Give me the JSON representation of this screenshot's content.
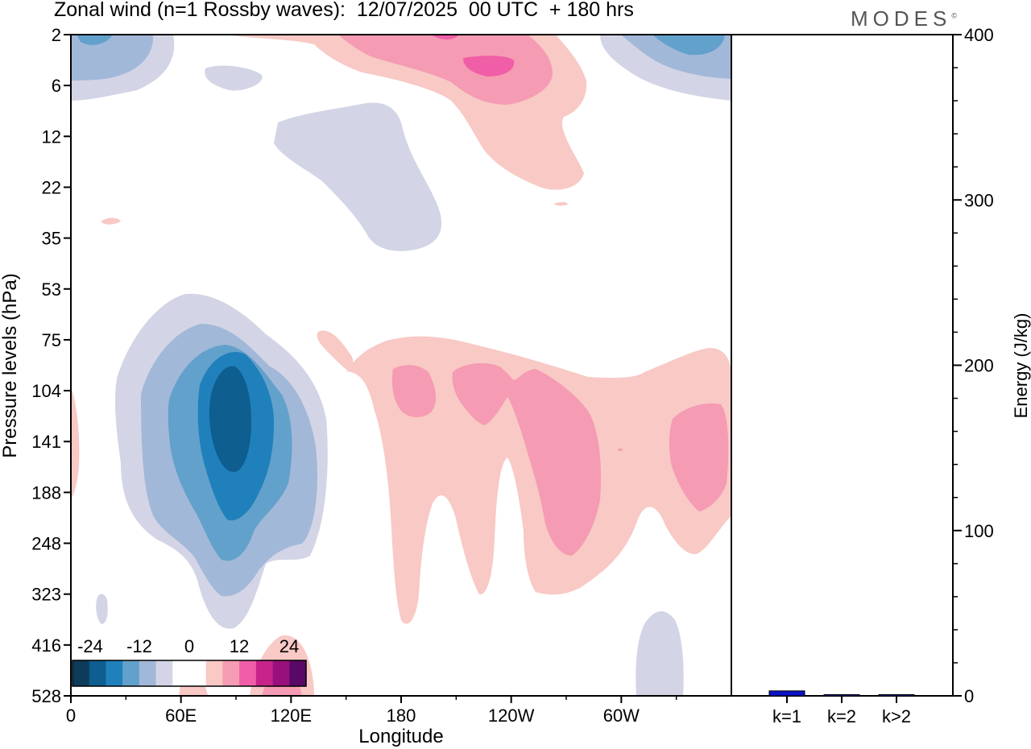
{
  "header": {
    "title": "Zonal wind (n=1 Rossby waves):  12/07/2025  00 UTC  + 180 hrs",
    "brand": "MODES",
    "brand_mark": "©"
  },
  "chart_data": [
    {
      "type": "heatmap",
      "title": "Zonal wind (n=1 Rossby waves):  12/07/2025  00 UTC  + 180 hrs",
      "xlabel": "Longitude",
      "ylabel": "Pressure levels (hPa)",
      "x_ticks": [
        "0",
        "60E",
        "120E",
        "180",
        "120W",
        "60W"
      ],
      "x_range_deg": [
        0,
        360
      ],
      "y_ticks": [
        "2",
        "6",
        "12",
        "22",
        "35",
        "53",
        "75",
        "104",
        "141",
        "188",
        "248",
        "323",
        "416",
        "528"
      ],
      "y_scale": "model levels (nonlinear)",
      "colorbar": {
        "labels": [
          "-24",
          "-12",
          "0",
          "12",
          "24"
        ],
        "levels": [
          -30,
          -24,
          -18,
          -12,
          -6,
          -3,
          3,
          6,
          12,
          18,
          24,
          30
        ],
        "colors": [
          "#0d3b5a",
          "#0e5e8f",
          "#2080bb",
          "#62a1cb",
          "#a2b8d8",
          "#d3d5e6",
          "#ffffff",
          "#ffffff",
          "#f8c9c5",
          "#f59bb3",
          "#ef5ea6",
          "#c8238a",
          "#98107c",
          "#5a0868"
        ]
      },
      "features": [
        {
          "name": "negative anomaly, lower stratosphere",
          "lon_deg": 85,
          "level_hPa": 141,
          "min_value": -30
        },
        {
          "name": "positive anomaly, upper levels",
          "lon_deg": 225,
          "level_hPa": 160,
          "max_value": 18
        },
        {
          "name": "positive anomaly, near top",
          "lon_deg": 225,
          "level_hPa": 3,
          "max_value": 24
        }
      ]
    },
    {
      "type": "bar",
      "categories": [
        "k=1",
        "k=2",
        "k>2"
      ],
      "values": [
        3,
        0.3,
        0.3
      ],
      "ylabel": "Energy (J/kg)",
      "ylim": [
        0,
        400
      ],
      "y_ticks": [
        "0",
        "100",
        "200",
        "300",
        "400"
      ],
      "colors": [
        "#0a12c8",
        "#0a12c8",
        "#0a12c8"
      ]
    }
  ]
}
